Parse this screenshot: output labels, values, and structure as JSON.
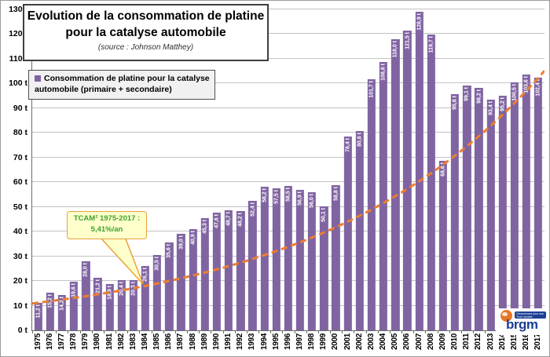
{
  "chart_data": {
    "type": "bar",
    "title": "Evolution de la consommation de platine pour la catalyse automobile",
    "subtitle": "(source : Johnson Matthey)",
    "legend": "Consommation de platine pour la catalyse automobile (primaire + secondaire)",
    "legend_position": "top-left",
    "grid": true,
    "unit": "t",
    "xlabel": "",
    "ylabel": "",
    "ylim": [
      0,
      130
    ],
    "ytick_step": 10,
    "ytick_labels": [
      "0 t",
      "10 t",
      "20 t",
      "30 t",
      "40 t",
      "50 t",
      "60 t",
      "70 t",
      "80 t",
      "90 t",
      "100 t",
      "110 t",
      "120 t",
      "130 t"
    ],
    "categories": [
      "1975",
      "1976",
      "1977",
      "1978",
      "1979",
      "1980",
      "1981",
      "1982",
      "1983",
      "1984",
      "1985",
      "1986",
      "1987",
      "1988",
      "1989",
      "1990",
      "1991",
      "1992",
      "1993",
      "1994",
      "1995",
      "1996",
      "1997",
      "1998",
      "1999",
      "2000",
      "2001",
      "2002",
      "2003",
      "2004",
      "2005",
      "2006",
      "2007",
      "2008",
      "2009",
      "2010",
      "2011",
      "2012",
      "2013",
      "2014",
      "2015",
      "2016",
      "2017"
    ],
    "values": [
      11.2,
      15.2,
      14.2,
      19.6,
      28.0,
      21.2,
      18.9,
      20.4,
      20.3,
      26.1,
      30.5,
      35.6,
      39.0,
      40.9,
      45.3,
      47.6,
      48.7,
      48.2,
      52.4,
      58.2,
      57.5,
      58.5,
      56.9,
      56.0,
      50.1,
      58.8,
      78.4,
      80.6,
      101.7,
      108.6,
      118.0,
      121.5,
      128.9,
      119.7,
      68.6,
      95.6,
      99.1,
      98.2,
      93.4,
      95.2,
      100.5,
      103.6,
      102.4
    ],
    "bar_labels": [
      "11,2 t",
      "15,2 t",
      "14,2 t",
      "19,6 t",
      "28,0 t",
      "21,2 t",
      "18,9 t",
      "20,4 t",
      "20,3 t",
      "26,1 t",
      "30,5 t",
      "35,6 t",
      "39,0 t",
      "40,9 t",
      "45,3 t",
      "47,6 t",
      "48,7 t",
      "48,2 t",
      "52,4 t",
      "58,2 t",
      "57,5 t",
      "58,5 t",
      "56,9 t",
      "56,0 t",
      "50,1 t",
      "58,8 t",
      "78,4 t",
      "80,6 t",
      "101,7 t",
      "108,6 t",
      "118,0 t",
      "121,5 t",
      "128,9 t",
      "119,7 t",
      "68,6 t",
      "95,6 t",
      "99,1 t",
      "98,2 t",
      "93,4 t",
      "95,2 t",
      "100,5 t",
      "103,6 t",
      "102,4 t"
    ],
    "bar_color": "#8064a2",
    "bar_label_color": "#ffffff",
    "grid_color": "#c3c3c3",
    "trend": {
      "type": "exponential",
      "label": "TCAM 1975-2017 : 5,41%/an",
      "start_value": 11.2,
      "annual_rate_percent": 5.41,
      "color": "#ee7d2e",
      "style": "dashed"
    }
  },
  "annotation": {
    "line1": "TCAM² 1975-2017 :",
    "line2": "5,41%/an",
    "text_color": "#3fa22e",
    "bg_color": "#ffffcc",
    "border_color": "#e9a13b"
  },
  "logo": {
    "text": "brgm",
    "tagline": "Géosciences pour une Terre durable"
  }
}
